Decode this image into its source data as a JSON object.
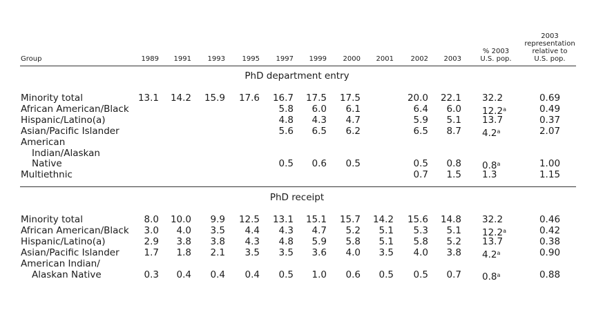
{
  "header": {
    "group": "Group",
    "years": [
      "1989",
      "1991",
      "1993",
      "1995",
      "1997",
      "1999",
      "2000",
      "2001",
      "2002",
      "2003"
    ],
    "pct_line1": "% 2003",
    "pct_line2": "U.S. pop.",
    "rep_line1": "2003",
    "rep_line2": "representation",
    "rep_line3": "relative to",
    "rep_line4": "U.S. pop."
  },
  "sections": [
    {
      "title": "PhD department entry",
      "rows": [
        {
          "group": [
            "Minority total"
          ],
          "values": [
            "13.1",
            "14.2",
            "15.9",
            "17.6",
            "16.7",
            "17.5",
            "17.5",
            "",
            "20.0",
            "22.1"
          ],
          "pct": "32.2",
          "pct_note": "",
          "rep": "0.69"
        },
        {
          "group": [
            "African American/Black"
          ],
          "values": [
            "",
            "",
            "",
            "",
            "5.8",
            "6.0",
            "6.1",
            "",
            "6.4",
            "6.0"
          ],
          "pct": "12.2",
          "pct_note": "a",
          "rep": "0.49"
        },
        {
          "group": [
            "Hispanic/Latino(a)"
          ],
          "values": [
            "",
            "",
            "",
            "",
            "4.8",
            "4.3",
            "4.7",
            "",
            "5.9",
            "5.1"
          ],
          "pct": "13.7",
          "pct_note": "",
          "rep": "0.37"
        },
        {
          "group": [
            "Asian/Pacific Islander"
          ],
          "values": [
            "",
            "",
            "",
            "",
            "5.6",
            "6.5",
            "6.2",
            "",
            "6.5",
            "8.7"
          ],
          "pct": "4.2",
          "pct_note": "a",
          "rep": "2.07"
        },
        {
          "group": [
            "American",
            "Indian/Alaskan",
            "Native"
          ],
          "values": [
            "",
            "",
            "",
            "",
            "0.5",
            "0.6",
            "0.5",
            "",
            "0.5",
            "0.8"
          ],
          "pct": "0.8",
          "pct_note": "a",
          "rep": "1.00"
        },
        {
          "group": [
            "Multiethnic"
          ],
          "values": [
            "",
            "",
            "",
            "",
            "",
            "",
            "",
            "",
            "0.7",
            "1.5"
          ],
          "pct": "1.3",
          "pct_note": "",
          "rep": "1.15"
        }
      ]
    },
    {
      "title": "PhD receipt",
      "rows": [
        {
          "group": [
            "Minority total"
          ],
          "values": [
            "8.0",
            "10.0",
            "9.9",
            "12.5",
            "13.1",
            "15.1",
            "15.7",
            "14.2",
            "15.6",
            "14.8"
          ],
          "pct": "32.2",
          "pct_note": "",
          "rep": "0.46"
        },
        {
          "group": [
            "African American/Black"
          ],
          "values": [
            "3.0",
            "4.0",
            "3.5",
            "4.4",
            "4.3",
            "4.7",
            "5.2",
            "5.1",
            "5.3",
            "5.1"
          ],
          "pct": "12.2",
          "pct_note": "a",
          "rep": "0.42"
        },
        {
          "group": [
            "Hispanic/Latino(a)"
          ],
          "values": [
            "2.9",
            "3.8",
            "3.8",
            "4.3",
            "4.8",
            "5.9",
            "5.8",
            "5.1",
            "5.8",
            "5.2"
          ],
          "pct": "13.7",
          "pct_note": "",
          "rep": "0.38"
        },
        {
          "group": [
            "Asian/Pacific Islander"
          ],
          "values": [
            "1.7",
            "1.8",
            "2.1",
            "3.5",
            "3.5",
            "3.6",
            "4.0",
            "3.5",
            "4.0",
            "3.8"
          ],
          "pct": "4.2",
          "pct_note": "a",
          "rep": "0.90"
        },
        {
          "group": [
            "American Indian/",
            "Alaskan Native"
          ],
          "values": [
            "0.3",
            "0.4",
            "0.4",
            "0.4",
            "0.5",
            "1.0",
            "0.6",
            "0.5",
            "0.5",
            "0.7"
          ],
          "pct": "0.8",
          "pct_note": "a",
          "rep": "0.88"
        }
      ]
    }
  ]
}
